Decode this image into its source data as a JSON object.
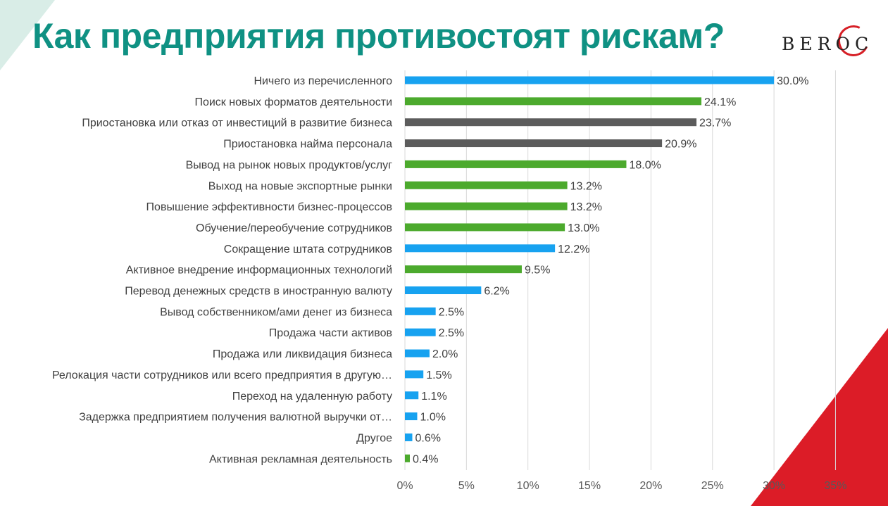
{
  "title": "Как предприятия противостоят рискам?",
  "logo": {
    "text": "BEROC"
  },
  "colors": {
    "title": "#0f9183",
    "blue": "#17a2f0",
    "green": "#4caa2d",
    "gray": "#5c5c5c",
    "red": "#dc1c27",
    "mint": "#d9ede7"
  },
  "chart_data": {
    "type": "bar",
    "orientation": "horizontal",
    "title": "",
    "xlabel": "",
    "ylabel": "",
    "xlim": [
      0,
      35
    ],
    "xticks": [
      "0%",
      "5%",
      "10%",
      "15%",
      "20%",
      "25%",
      "30%",
      "35%"
    ],
    "grid": true,
    "categories": [
      "Ничего из перечисленного",
      "Поиск новых форматов деятельности",
      "Приостановка или отказ от инвестиций в развитие бизнеса",
      "Приостановка найма персонала",
      "Вывод на рынок новых продуктов/услуг",
      "Выход на новые экспортные рынки",
      "Повышение эффективности бизнес-процессов",
      "Обучение/переобучение сотрудников",
      "Сокращение штата сотрудников",
      "Активное внедрение информационных технологий",
      "Перевод денежных средств в иностранную валюту",
      "Вывод собственником/ами денег из бизнеса",
      "Продажа части активов",
      "Продажа или ликвидация бизнеса",
      "Релокация части сотрудников или всего предприятия в другую…",
      "Переход на удаленную работу",
      "Задержка предприятием получения валютной выручки от…",
      "Другое",
      "Активная рекламная деятельность"
    ],
    "values": [
      30.0,
      24.1,
      23.7,
      20.9,
      18.0,
      13.2,
      13.2,
      13.0,
      12.2,
      9.5,
      6.2,
      2.5,
      2.5,
      2.0,
      1.5,
      1.1,
      1.0,
      0.6,
      0.4
    ],
    "value_labels": [
      "30.0%",
      "24.1%",
      "23.7%",
      "20.9%",
      "18.0%",
      "13.2%",
      "13.2%",
      "13.0%",
      "12.2%",
      "9.5%",
      "6.2%",
      "2.5%",
      "2.5%",
      "2.0%",
      "1.5%",
      "1.1%",
      "1.0%",
      "0.6%",
      "0.4%"
    ],
    "bar_colors": [
      "#17a2f0",
      "#4caa2d",
      "#5c5c5c",
      "#5c5c5c",
      "#4caa2d",
      "#4caa2d",
      "#4caa2d",
      "#4caa2d",
      "#17a2f0",
      "#4caa2d",
      "#17a2f0",
      "#17a2f0",
      "#17a2f0",
      "#17a2f0",
      "#17a2f0",
      "#17a2f0",
      "#17a2f0",
      "#17a2f0",
      "#4caa2d"
    ]
  }
}
